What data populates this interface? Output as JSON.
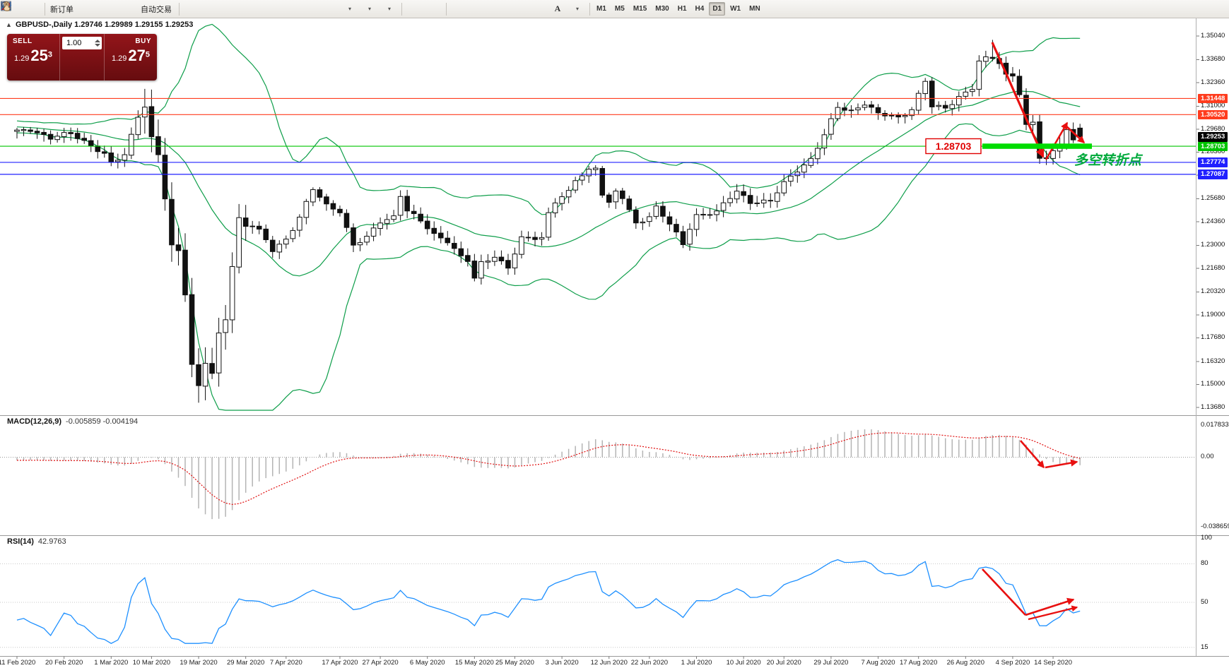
{
  "toolbar": {
    "new_order_label": "新订单",
    "auto_trading_label": "自动交易",
    "timeframes": [
      "M1",
      "M5",
      "M15",
      "M30",
      "H1",
      "H4",
      "D1",
      "W1",
      "MN"
    ],
    "active_timeframe": "D1"
  },
  "quote_panel": {
    "sell_label": "SELL",
    "buy_label": "BUY",
    "volume": "1.00",
    "sell_price": {
      "small": "1.29",
      "big": "25",
      "sup": "3"
    },
    "buy_price": {
      "small": "1.29",
      "big": "27",
      "sup": "5"
    }
  },
  "chart": {
    "symbol_line": "GBPUSD-,Daily 1.29746 1.29989 1.29155 1.29253"
  },
  "chart_data": {
    "type": "candlestick",
    "symbol": "GBPUSD",
    "timeframe": "Daily",
    "bars_visible": 159,
    "ohlc_current": {
      "open": 1.29746,
      "high": 1.29989,
      "low": 1.29155,
      "close": 1.29253
    },
    "price_axis_ticks": [
      "1.35040",
      "1.33680",
      "1.32360",
      "1.31000",
      "1.29680",
      "1.28360",
      "1.27040",
      "1.25680",
      "1.24360",
      "1.23000",
      "1.21680",
      "1.20320",
      "1.19000",
      "1.17680",
      "1.16320",
      "1.15000",
      "1.13680"
    ],
    "levels": [
      {
        "price": 1.31448,
        "label": "1.31448",
        "color": "#ff3c1e",
        "style": "line"
      },
      {
        "price": 1.3052,
        "label": "1.30520",
        "color": "#ff3c1e",
        "style": "line"
      },
      {
        "price": 1.29253,
        "label": "1.29253",
        "color": "#000000",
        "style": "badge-only"
      },
      {
        "price": 1.28703,
        "label": "1.28703",
        "color": "#00c400",
        "style": "line"
      },
      {
        "price": 1.27774,
        "label": "1.27774",
        "color": "#2020ff",
        "style": "line"
      },
      {
        "price": 1.27087,
        "label": "1.27087",
        "color": "#2020ff",
        "style": "line"
      }
    ],
    "bollinger": {
      "period": 20,
      "deviation": 2,
      "color": "#0e9e4a"
    },
    "annotations": {
      "support_price_label": "1.28703",
      "turning_point_text": "多空转折点"
    },
    "close_waypoints": [
      [
        -30,
        1.306
      ],
      [
        -22,
        1.3008
      ],
      [
        -14,
        1.2996
      ],
      [
        -8,
        1.2976
      ],
      [
        -1,
        1.2958
      ],
      [
        0,
        1.2952
      ],
      [
        2,
        1.2968
      ],
      [
        5,
        1.2918
      ],
      [
        8,
        1.2942
      ],
      [
        11,
        1.288
      ],
      [
        13,
        1.2822
      ],
      [
        14,
        1.2768
      ],
      [
        16,
        1.2818
      ],
      [
        18,
        1.305
      ],
      [
        19,
        1.3115
      ],
      [
        20,
        1.2905
      ],
      [
        21,
        1.282
      ],
      [
        22,
        1.2568
      ],
      [
        23,
        1.2272
      ],
      [
        24,
        1.2268
      ],
      [
        25,
        1.2048
      ],
      [
        26,
        1.1618
      ],
      [
        27,
        1.149
      ],
      [
        28,
        1.164
      ],
      [
        29,
        1.1548
      ],
      [
        30,
        1.1762
      ],
      [
        31,
        1.1882
      ],
      [
        32,
        1.2192
      ],
      [
        33,
        1.2452
      ],
      [
        34,
        1.2418
      ],
      [
        35,
        1.2416
      ],
      [
        36,
        1.2382
      ],
      [
        38,
        1.2268
      ],
      [
        40,
        1.2335
      ],
      [
        42,
        1.2466
      ],
      [
        44,
        1.2622
      ],
      [
        46,
        1.2526
      ],
      [
        48,
        1.25
      ],
      [
        50,
        1.2302
      ],
      [
        52,
        1.2342
      ],
      [
        54,
        1.2436
      ],
      [
        56,
        1.2468
      ],
      [
        57,
        1.2592
      ],
      [
        58,
        1.2502
      ],
      [
        60,
        1.2436
      ],
      [
        62,
        1.2362
      ],
      [
        64,
        1.233
      ],
      [
        66,
        1.2232
      ],
      [
        67,
        1.221
      ],
      [
        68,
        1.2106
      ],
      [
        69,
        1.2196
      ],
      [
        71,
        1.2242
      ],
      [
        73,
        1.2172
      ],
      [
        75,
        1.2336
      ],
      [
        78,
        1.2346
      ],
      [
        79,
        1.2488
      ],
      [
        80,
        1.2556
      ],
      [
        82,
        1.2602
      ],
      [
        83,
        1.2672
      ],
      [
        85,
        1.2732
      ],
      [
        86,
        1.2752
      ],
      [
        87,
        1.2602
      ],
      [
        88,
        1.2542
      ],
      [
        89,
        1.2606
      ],
      [
        90,
        1.2572
      ],
      [
        92,
        1.2422
      ],
      [
        94,
        1.2472
      ],
      [
        95,
        1.2522
      ],
      [
        97,
        1.2422
      ],
      [
        99,
        1.2302
      ],
      [
        100,
        1.2402
      ],
      [
        101,
        1.2476
      ],
      [
        104,
        1.2492
      ],
      [
        107,
        1.2612
      ],
      [
        109,
        1.2552
      ],
      [
        112,
        1.2552
      ],
      [
        114,
        1.2656
      ],
      [
        116,
        1.2736
      ],
      [
        118,
        1.2796
      ],
      [
        120,
        1.2932
      ],
      [
        122,
        1.3096
      ],
      [
        123,
        1.3086
      ],
      [
        124,
        1.3076
      ],
      [
        126,
        1.3116
      ],
      [
        128,
        1.3052
      ],
      [
        130,
        1.3046
      ],
      [
        131,
        1.3036
      ],
      [
        133,
        1.3086
      ],
      [
        135,
        1.3242
      ],
      [
        136,
        1.3096
      ],
      [
        138,
        1.3092
      ],
      [
        140,
        1.3156
      ],
      [
        142,
        1.3202
      ],
      [
        143,
        1.3352
      ],
      [
        144,
        1.3372
      ],
      [
        145,
        1.3382
      ],
      [
        146,
        1.3352
      ],
      [
        147,
        1.3282
      ],
      [
        148,
        1.3282
      ],
      [
        149,
        1.3172
      ],
      [
        150,
        1.2982
      ],
      [
        151,
        1.3002
      ],
      [
        152,
        1.2806
      ],
      [
        153,
        1.2796
      ],
      [
        154,
        1.2846
      ],
      [
        155,
        1.2896
      ],
      [
        156,
        1.2966
      ],
      [
        157,
        1.2896
      ],
      [
        158,
        1.2925
      ]
    ],
    "date_ticks": [
      [
        "11 Feb 2020",
        0
      ],
      [
        "20 Feb 2020",
        7
      ],
      [
        "1 Mar 2020",
        14
      ],
      [
        "10 Mar 2020",
        20
      ],
      [
        "19 Mar 2020",
        27
      ],
      [
        "29 Mar 2020",
        34
      ],
      [
        "7 Apr 2020",
        40
      ],
      [
        "17 Apr 2020",
        48
      ],
      [
        "27 Apr 2020",
        54
      ],
      [
        "6 May 2020",
        61
      ],
      [
        "15 May 2020",
        68
      ],
      [
        "25 May 2020",
        74
      ],
      [
        "3 Jun 2020",
        81
      ],
      [
        "12 Jun 2020",
        88
      ],
      [
        "22 Jun 2020",
        94
      ],
      [
        "1 Jul 2020",
        101
      ],
      [
        "10 Jul 2020",
        108
      ],
      [
        "20 Jul 2020",
        114
      ],
      [
        "29 Jul 2020",
        121
      ],
      [
        "7 Aug 2020",
        128
      ],
      [
        "17 Aug 2020",
        134
      ],
      [
        "26 Aug 2020",
        141
      ],
      [
        "4 Sep 2020",
        148
      ],
      [
        "14 Sep 2020",
        154
      ]
    ]
  },
  "macd_panel": {
    "title": "MACD(12,26,9)",
    "values_text": "-0.005859 -0.004194",
    "scale_labels": [
      "0.017833",
      "0.00",
      "-0.038659"
    ],
    "scale_values": [
      0.017833,
      0,
      -0.038659
    ]
  },
  "rsi_panel": {
    "title": "RSI(14)",
    "value_text": "42.9763",
    "scale_labels": [
      "100",
      "80",
      "50",
      "15"
    ],
    "scale_values": [
      100,
      80,
      50,
      15
    ]
  }
}
